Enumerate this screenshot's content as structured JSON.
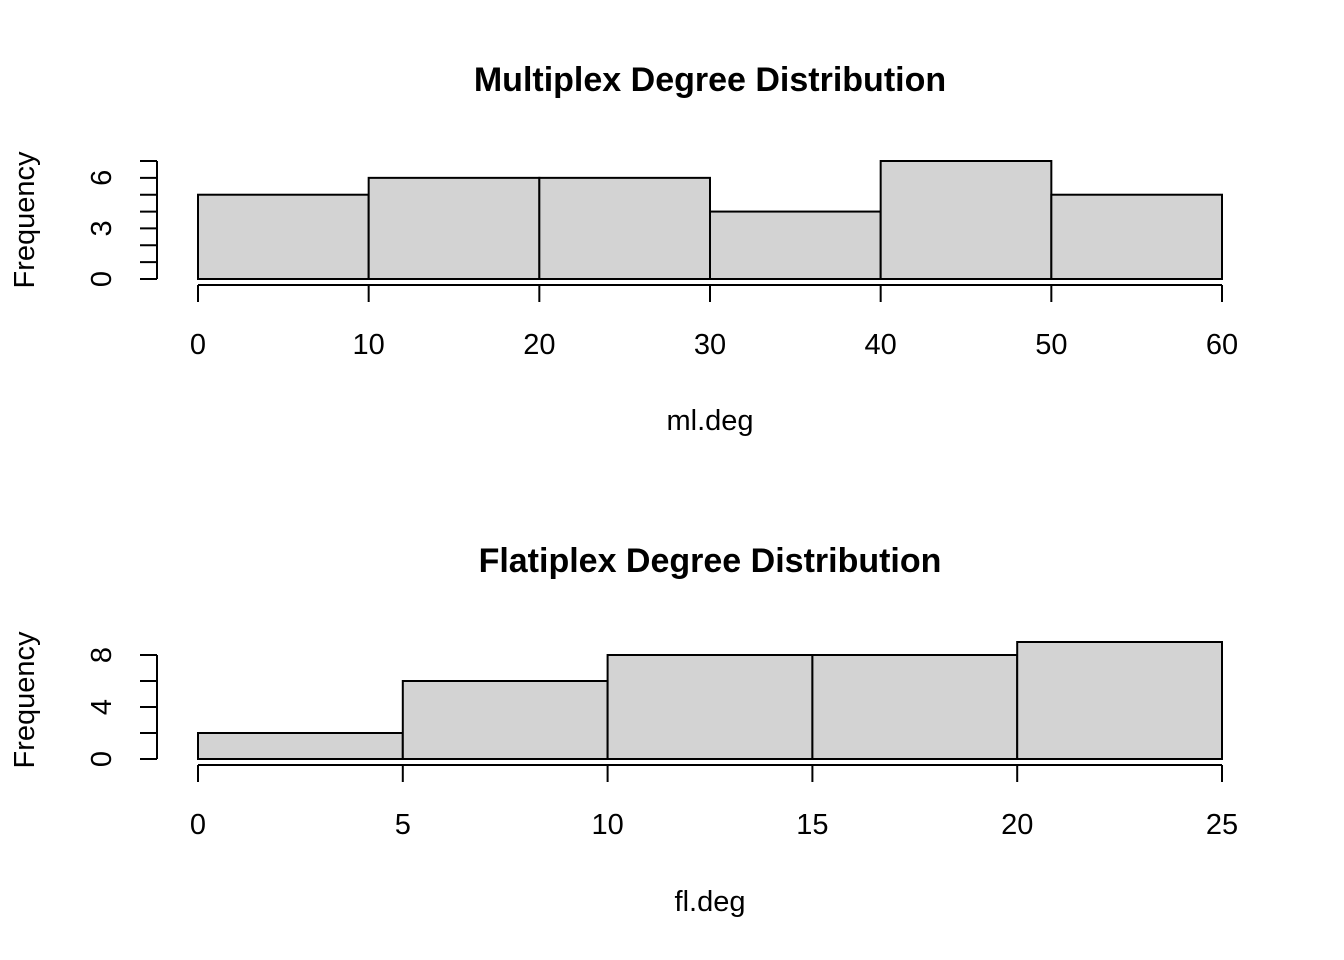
{
  "chart_data": [
    {
      "type": "histogram",
      "title": "Multiplex Degree Distribution",
      "xlabel": "ml.deg",
      "ylabel": "Frequency",
      "bin_edges": [
        0,
        10,
        20,
        30,
        40,
        50,
        60
      ],
      "values": [
        5,
        6,
        6,
        4,
        7,
        5
      ],
      "xlim": [
        0,
        60
      ],
      "ylim": [
        0,
        7
      ],
      "x_ticks": [
        0,
        10,
        20,
        30,
        40,
        50,
        60
      ],
      "y_ticks": [
        0,
        1,
        2,
        3,
        4,
        5,
        6,
        7
      ],
      "y_tick_labels": [
        0,
        3,
        6
      ],
      "bar_color": "#d3d3d3",
      "grid": false
    },
    {
      "type": "histogram",
      "title": "Flatiplex Degree Distribution",
      "xlabel": "fl.deg",
      "ylabel": "Frequency",
      "bin_edges": [
        0,
        5,
        10,
        15,
        20,
        25
      ],
      "values": [
        2,
        6,
        8,
        8,
        9
      ],
      "xlim": [
        0,
        25
      ],
      "ylim": [
        0,
        8
      ],
      "x_ticks": [
        0,
        5,
        10,
        15,
        20,
        25
      ],
      "y_ticks": [
        0,
        2,
        4,
        6,
        8
      ],
      "y_tick_labels": [
        0,
        4,
        8
      ],
      "bar_color": "#d3d3d3",
      "grid": false
    }
  ]
}
